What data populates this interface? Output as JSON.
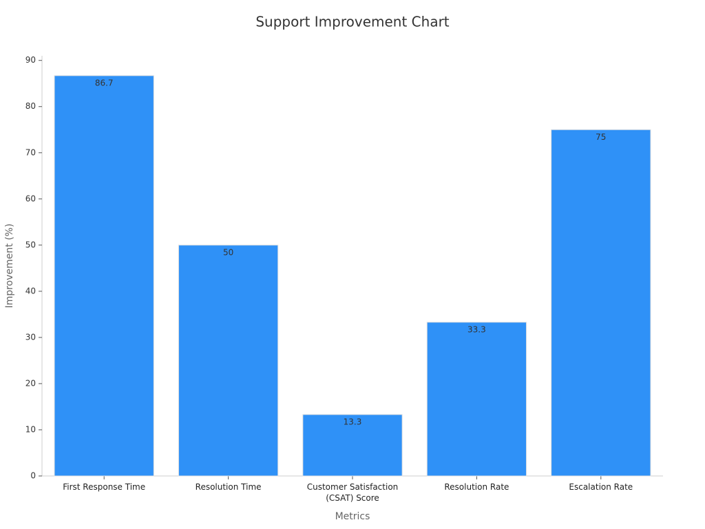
{
  "chart_data": {
    "type": "bar",
    "title": "Support Improvement Chart",
    "x_label": "Metrics",
    "y_label": "Improvement (%)",
    "categories": [
      "First Response Time",
      "Resolution Time",
      "Customer Satisfaction (CSAT) Score",
      "Resolution Rate",
      "Escalation Rate"
    ],
    "values": [
      86.7,
      50,
      13.3,
      33.3,
      75
    ],
    "color": "#2f91f7",
    "ylim": [
      0,
      91
    ],
    "yticks": [
      0,
      10,
      20,
      30,
      40,
      50,
      60,
      70,
      80,
      90
    ]
  }
}
